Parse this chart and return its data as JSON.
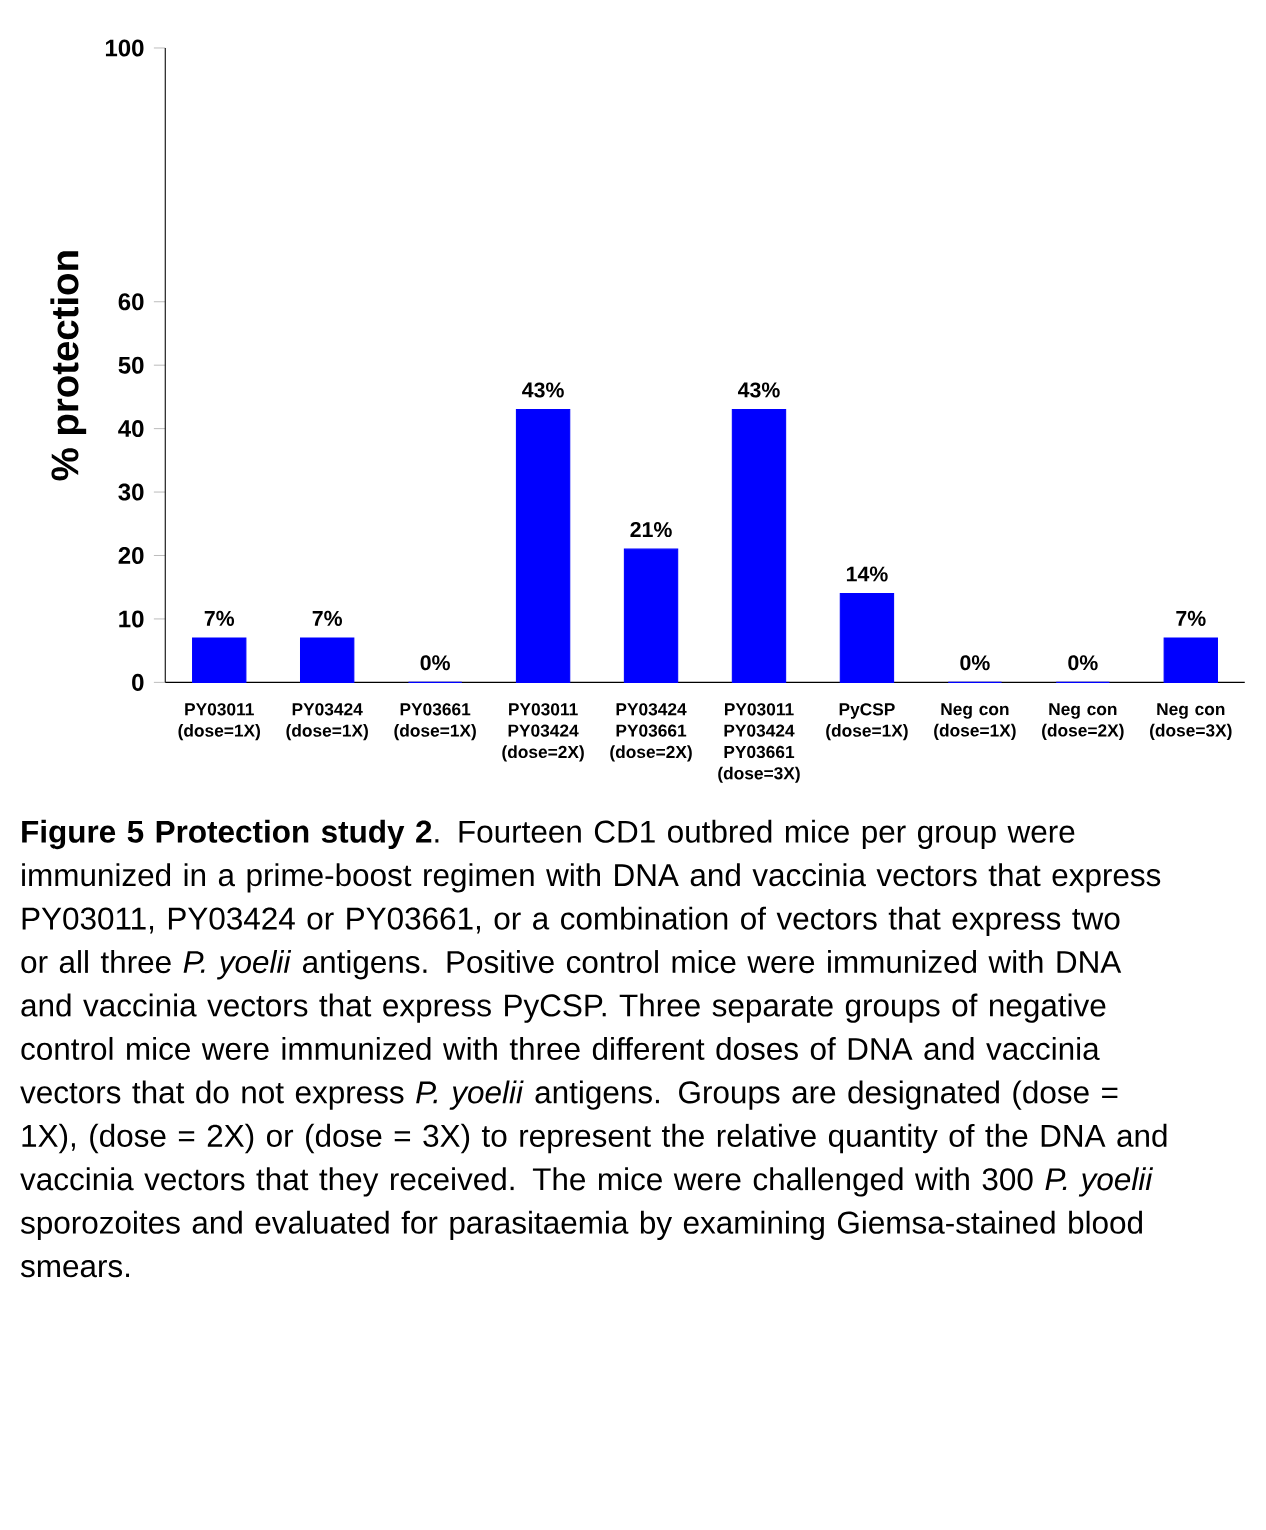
{
  "chart_data": {
    "type": "bar",
    "ylabel": "% protection",
    "categories": [
      "PY03011 (dose=1X)",
      "PY03424 (dose=1X)",
      "PY03661 (dose=1X)",
      "PY03011 PY03424 (dose=2X)",
      "PY03424 PY03661 (dose=2X)",
      "PY03011 PY03424 PY03661 (dose=3X)",
      "PyCSP (dose=1X)",
      "Neg con (dose=1X)",
      "Neg con (dose=2X)",
      "Neg con (dose=3X)"
    ],
    "values": [
      7,
      7,
      0,
      43,
      21,
      43,
      14,
      0,
      0,
      7
    ],
    "value_labels": [
      "7%",
      "7%",
      "0%",
      "43%",
      "21%",
      "43%",
      "14%",
      "0%",
      "0%",
      "7%"
    ],
    "color": "#0000ff",
    "ylim": [
      0,
      100
    ],
    "yticks": [
      0,
      10,
      20,
      30,
      40,
      50,
      60,
      100
    ],
    "grid": false,
    "annotations": [
      "**Figure 5 Protection study 2**. Fourteen CD1 outbred mice per group were immunized in a prime-boost regimen with DNA and vaccinia vectors that express PY03011, PY03424 or PY03661, or a combination of vectors that express two or all three *P. yoelii* antigens. Positive control mice were immunized with DNA and vaccinia vectors that express PyCSP. Three separate groups of negative control mice were immunized with three different doses of DNA and vaccinia vectors that do not express *P. yoelii* antigens. Groups are designated (dose = 1X), (dose = 2X) or (dose = 3X) to represent the relative quantity of the DNA and vaccinia vectors that they received. The mice were challenged with 300 *P. yoelii* sporozoites and evaluated for parasitaemia by examining Giemsa-stained blood smears."
    ]
  }
}
